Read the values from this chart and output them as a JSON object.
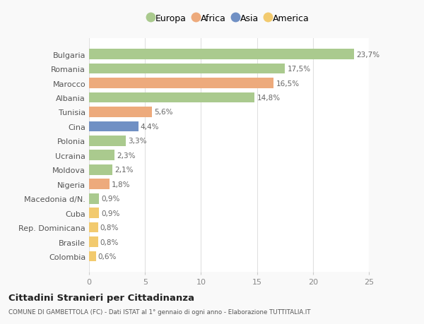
{
  "countries": [
    "Colombia",
    "Brasile",
    "Rep. Dominicana",
    "Cuba",
    "Macedonia d/N.",
    "Nigeria",
    "Moldova",
    "Ucraina",
    "Polonia",
    "Cina",
    "Tunisia",
    "Albania",
    "Marocco",
    "Romania",
    "Bulgaria"
  ],
  "values": [
    0.6,
    0.8,
    0.8,
    0.9,
    0.9,
    1.8,
    2.1,
    2.3,
    3.3,
    4.4,
    5.6,
    14.8,
    16.5,
    17.5,
    23.7
  ],
  "labels": [
    "0,6%",
    "0,8%",
    "0,8%",
    "0,9%",
    "0,9%",
    "1,8%",
    "2,1%",
    "2,3%",
    "3,3%",
    "4,4%",
    "5,6%",
    "14,8%",
    "16,5%",
    "17,5%",
    "23,7%"
  ],
  "colors": [
    "#f2ca6e",
    "#f2ca6e",
    "#f2ca6e",
    "#f2ca6e",
    "#aaca8e",
    "#edaa7c",
    "#aaca8e",
    "#aaca8e",
    "#aaca8e",
    "#7090c4",
    "#edaa7c",
    "#aaca8e",
    "#edaa7c",
    "#aaca8e",
    "#aaca8e"
  ],
  "legend_labels": [
    "Europa",
    "Africa",
    "Asia",
    "America"
  ],
  "legend_colors": [
    "#aaca8e",
    "#edaa7c",
    "#7090c4",
    "#f2ca6e"
  ],
  "title": "Cittadini Stranieri per Cittadinanza",
  "subtitle": "COMUNE DI GAMBETTOLA (FC) - Dati ISTAT al 1° gennaio di ogni anno - Elaborazione TUTTITALIA.IT",
  "xlim": [
    0,
    25
  ],
  "xticks": [
    0,
    5,
    10,
    15,
    20,
    25
  ],
  "background_color": "#f9f9f9",
  "bar_background": "#ffffff",
  "grid_color": "#e0e0e0"
}
